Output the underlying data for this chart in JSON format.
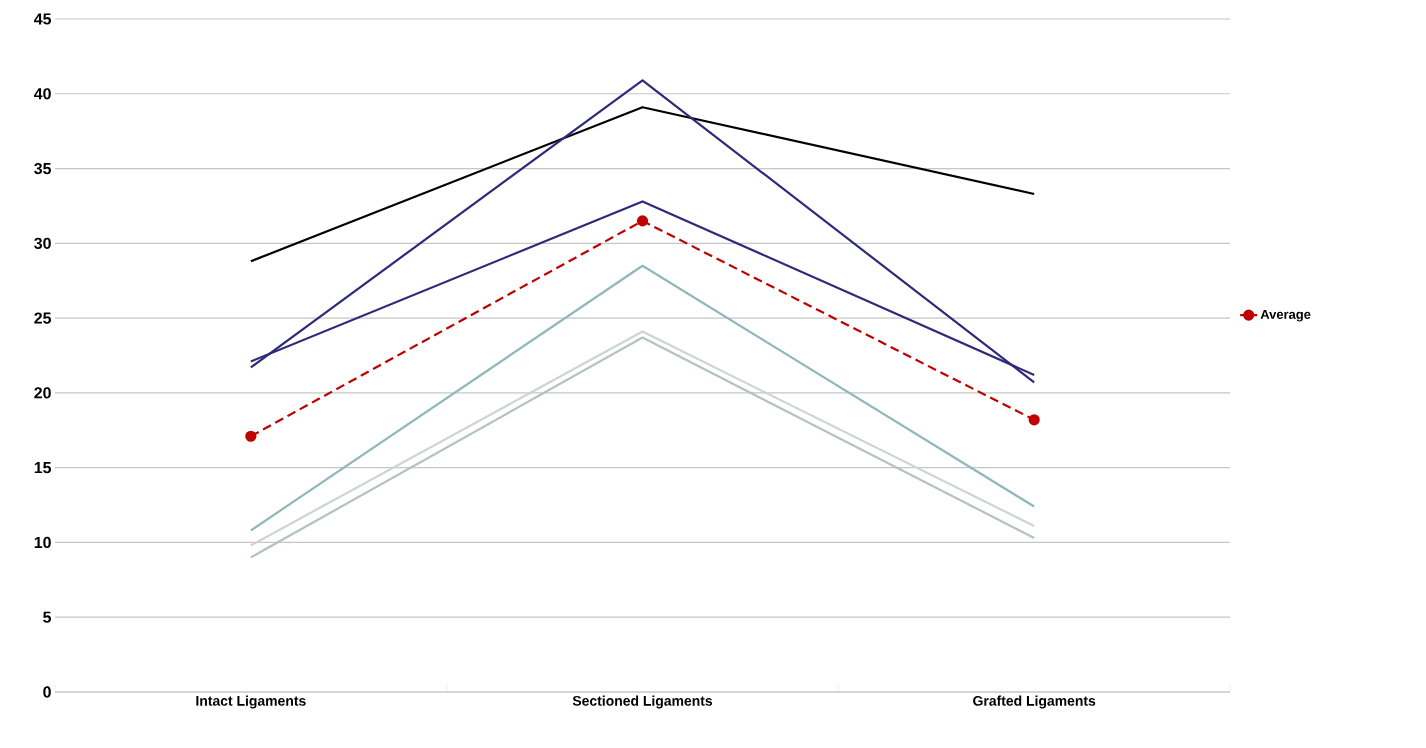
{
  "chart_data": {
    "type": "line",
    "categories": [
      "Intact Ligaments",
      "Sectioned Ligaments",
      "Grafted Ligaments"
    ],
    "series": [
      {
        "color": "#000000",
        "values": [
          28.8,
          39.1,
          33.3
        ]
      },
      {
        "color": "#2e2a7a",
        "values": [
          21.7,
          40.9,
          20.7
        ]
      },
      {
        "color": "#2e2a7a",
        "values": [
          22.1,
          32.8,
          21.2
        ]
      },
      {
        "color": "#8fb8ba",
        "values": [
          10.8,
          28.5,
          12.4
        ]
      },
      {
        "color": "#cfd3d3",
        "values": [
          9.8,
          24.1,
          11.1
        ]
      },
      {
        "color": "#b4c2c2",
        "values": [
          9.0,
          23.7,
          10.3
        ]
      },
      {
        "name": "Average",
        "color": "#c00000",
        "values": [
          17.1,
          31.5,
          18.2
        ],
        "marker": "circle",
        "line_style": "dashed"
      }
    ],
    "ylim": [
      0,
      45
    ],
    "yticks": [
      0,
      5,
      10,
      15,
      20,
      25,
      30,
      35,
      40,
      45
    ],
    "grid": "y",
    "legend": "right"
  }
}
